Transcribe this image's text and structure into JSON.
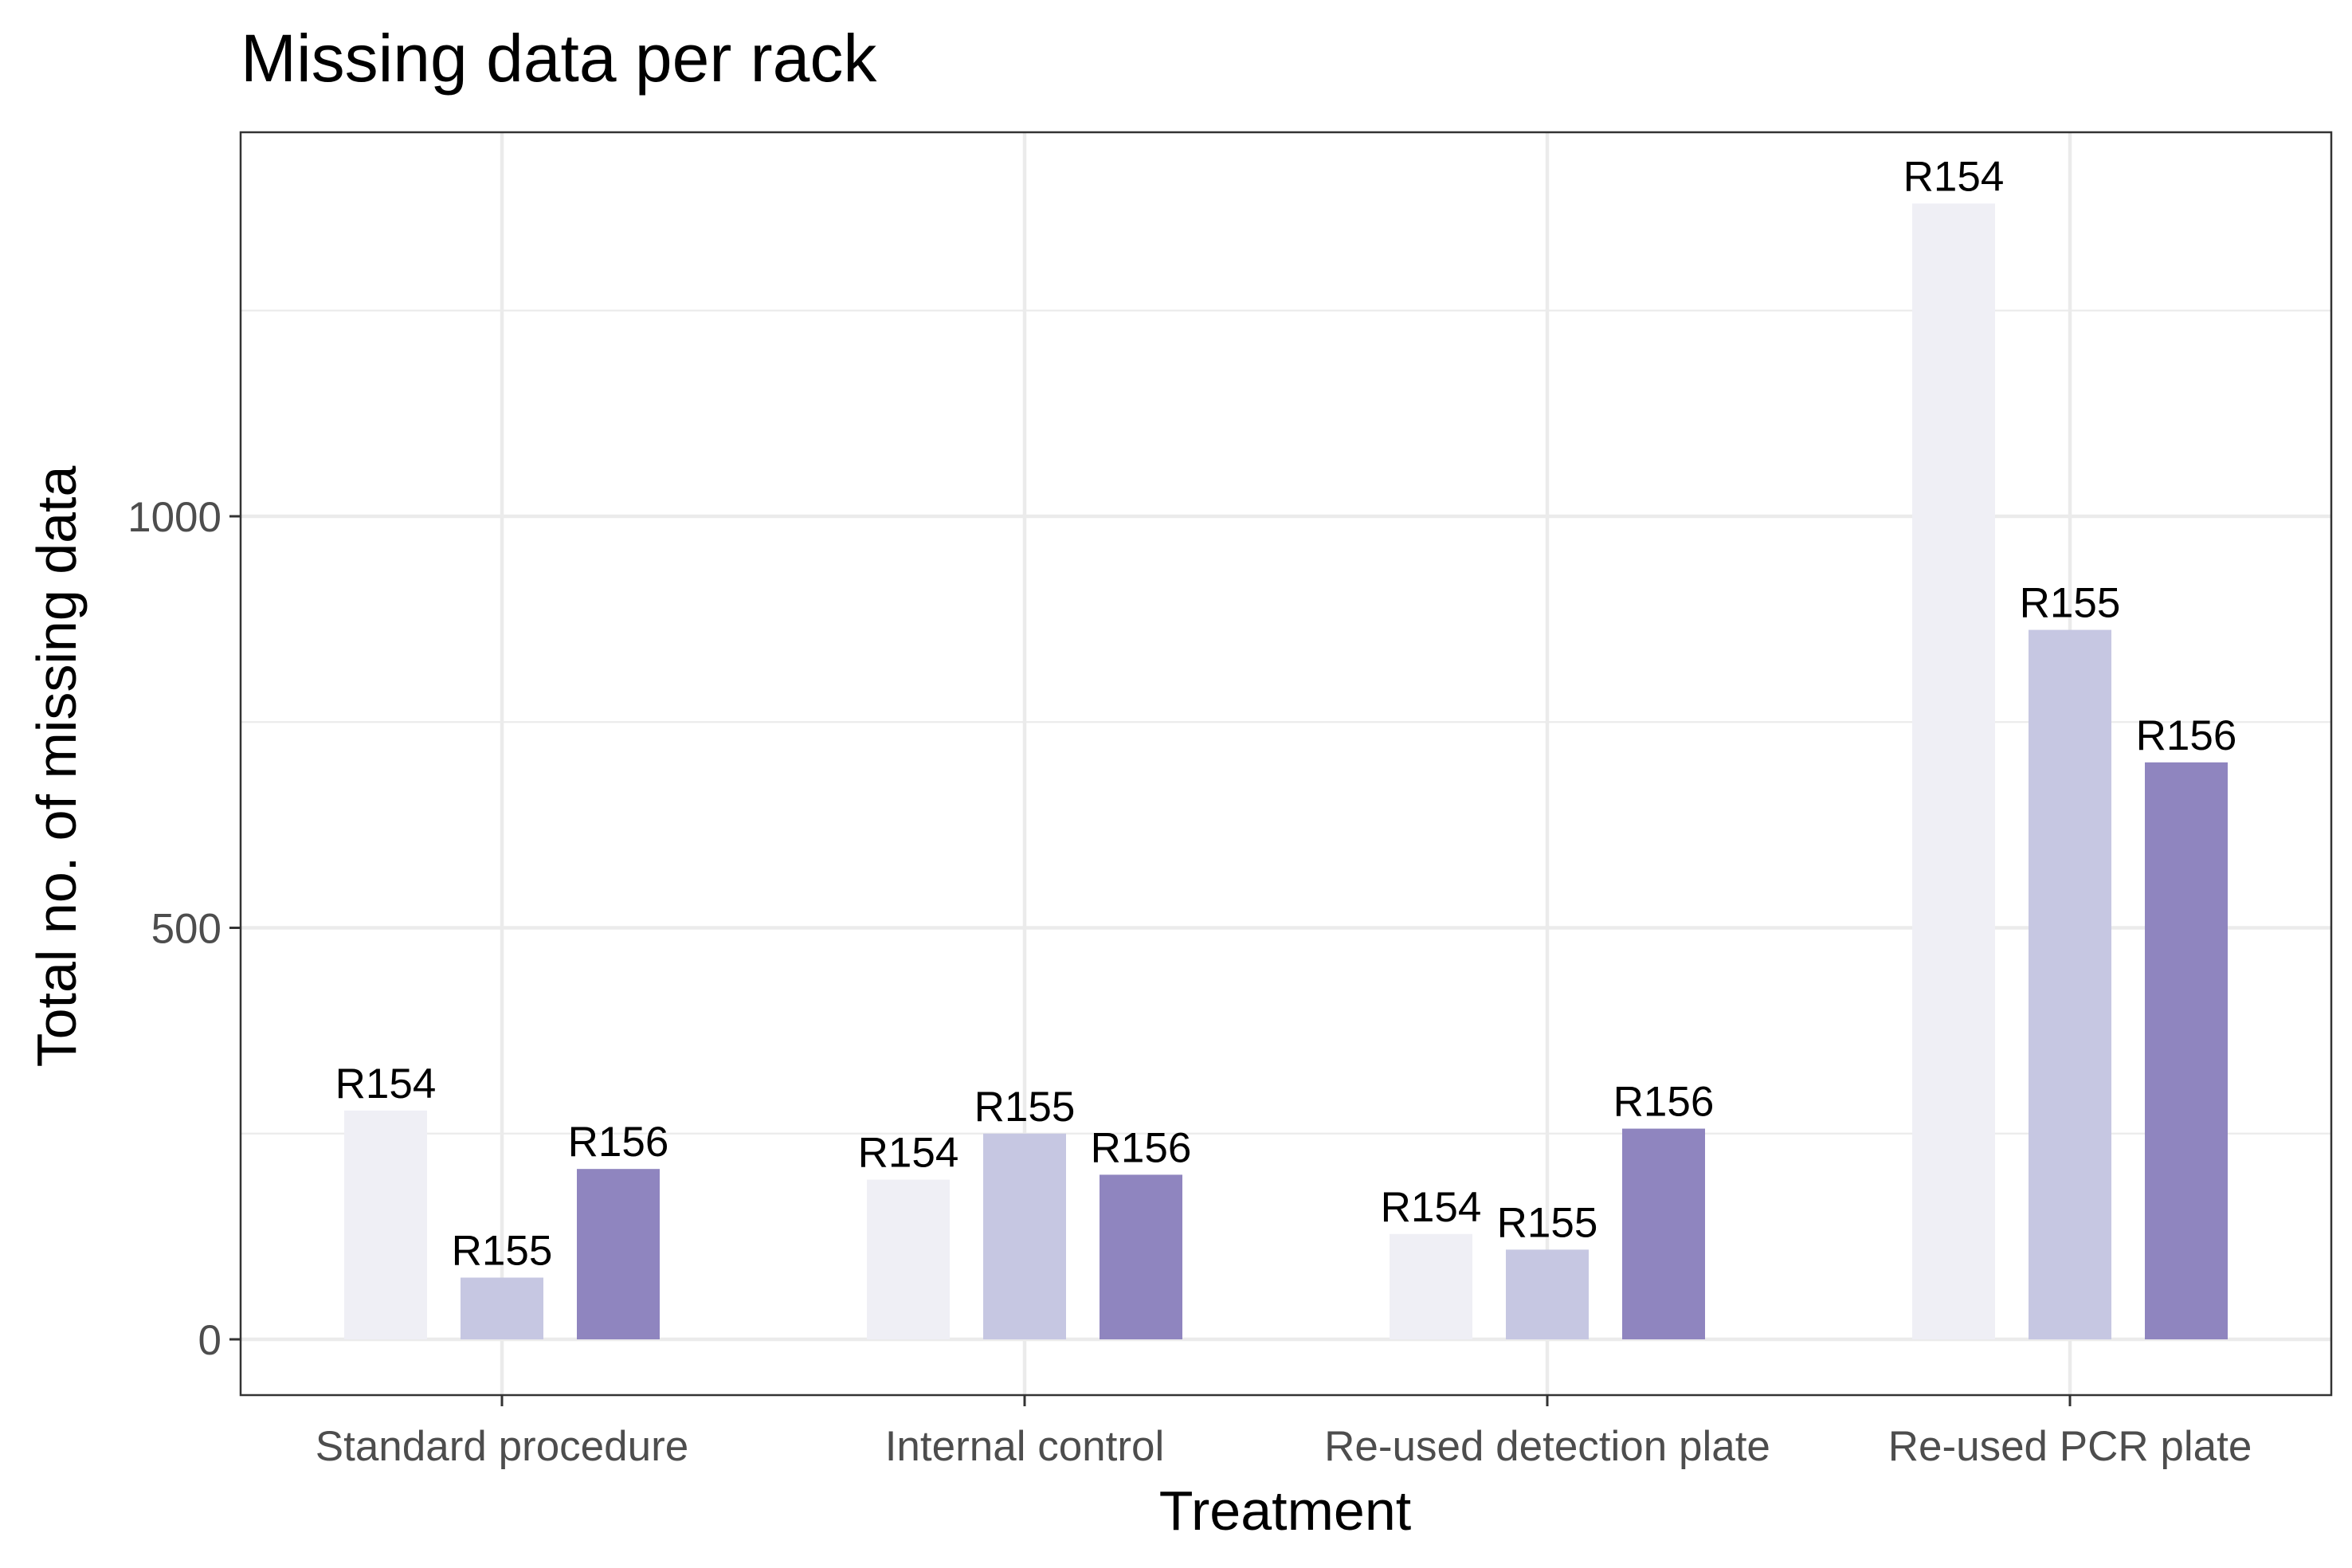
{
  "chart_data": {
    "type": "bar",
    "title": "Missing data per rack",
    "xlabel": "Treatment",
    "ylabel": "Total no. of missing data",
    "categories": [
      "Standard procedure",
      "Internal control",
      "Re-used detection plate",
      "Re-used PCR plate"
    ],
    "series": [
      {
        "name": "R154",
        "color": "#efeff5",
        "values": [
          278,
          194,
          128,
          1380
        ]
      },
      {
        "name": "R155",
        "color": "#c6c7e2",
        "values": [
          75,
          250,
          109,
          862
        ]
      },
      {
        "name": "R156",
        "color": "#8f85bf",
        "values": [
          207,
          200,
          256,
          701
        ]
      }
    ],
    "ylim": [
      -70,
      1470
    ],
    "yticks": [
      0,
      500,
      1000
    ],
    "ytick_labels": [
      "0",
      "500",
      "1000"
    ],
    "grid": true,
    "legend": "none"
  }
}
